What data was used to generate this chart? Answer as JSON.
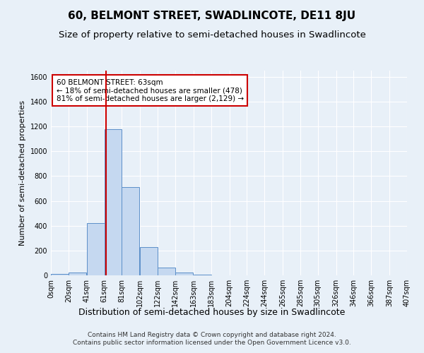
{
  "title": "60, BELMONT STREET, SWADLINCOTE, DE11 8JU",
  "subtitle": "Size of property relative to semi-detached houses in Swadlincote",
  "xlabel": "Distribution of semi-detached houses by size in Swadlincote",
  "ylabel": "Number of semi-detached properties",
  "footer_line1": "Contains HM Land Registry data © Crown copyright and database right 2024.",
  "footer_line2": "Contains public sector information licensed under the Open Government Licence v3.0.",
  "annotation_title": "60 BELMONT STREET: 63sqm",
  "annotation_line1": "← 18% of semi-detached houses are smaller (478)",
  "annotation_line2": "81% of semi-detached houses are larger (2,129) →",
  "property_size": 63,
  "bar_left_edges": [
    0,
    20,
    41,
    61,
    81,
    102,
    122,
    142,
    163,
    183,
    204,
    224,
    244,
    265,
    285,
    305,
    326,
    346,
    366,
    387
  ],
  "bar_heights": [
    10,
    25,
    420,
    1175,
    710,
    230,
    65,
    25,
    5,
    2,
    2,
    1,
    1,
    0,
    0,
    0,
    0,
    0,
    0,
    0
  ],
  "bar_color": "#c5d8f0",
  "bar_edge_color": "#5b8fc9",
  "red_line_x": 63,
  "xlim": [
    0,
    407
  ],
  "ylim": [
    0,
    1650
  ],
  "yticks": [
    0,
    200,
    400,
    600,
    800,
    1000,
    1200,
    1400,
    1600
  ],
  "xtick_labels": [
    "0sqm",
    "20sqm",
    "41sqm",
    "61sqm",
    "81sqm",
    "102sqm",
    "122sqm",
    "142sqm",
    "163sqm",
    "183sqm",
    "204sqm",
    "224sqm",
    "244sqm",
    "265sqm",
    "285sqm",
    "305sqm",
    "326sqm",
    "346sqm",
    "366sqm",
    "387sqm",
    "407sqm"
  ],
  "background_color": "#e8f0f8",
  "grid_color": "#ffffff",
  "annotation_box_color": "#ffffff",
  "annotation_box_edge": "#cc0000",
  "red_line_color": "#cc0000",
  "title_fontsize": 11,
  "subtitle_fontsize": 9.5,
  "xlabel_fontsize": 9,
  "ylabel_fontsize": 8,
  "annotation_fontsize": 7.5,
  "footer_fontsize": 6.5,
  "tick_fontsize": 7
}
